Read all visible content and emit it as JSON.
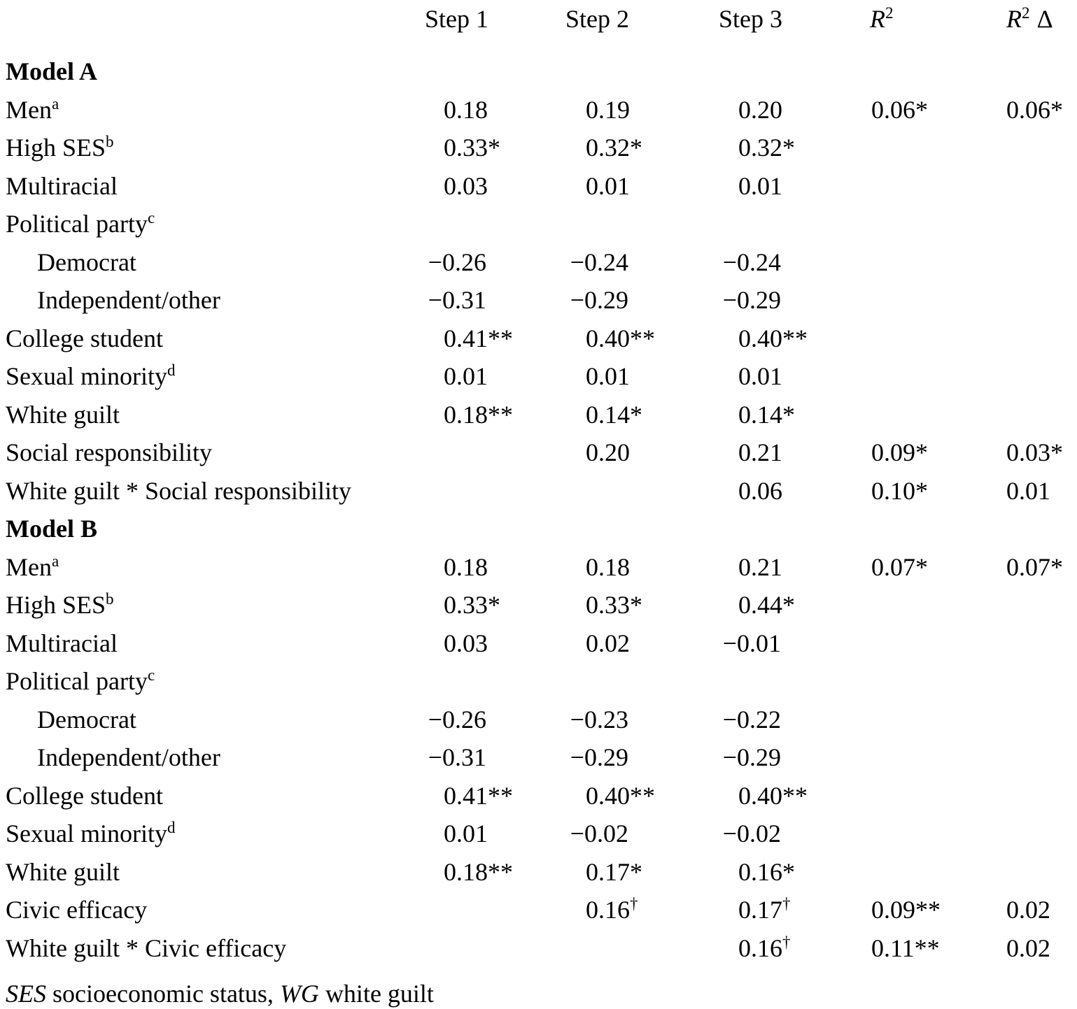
{
  "page": {
    "background": "#ffffff",
    "text_color": "#000000",
    "rule_color": "#000000"
  },
  "table": {
    "header": {
      "columns": [
        {
          "name": "step-1",
          "segments": [
            {
              "t": "Step 1"
            }
          ]
        },
        {
          "name": "step-2",
          "segments": [
            {
              "t": "Step 2"
            }
          ]
        },
        {
          "name": "step-3",
          "segments": [
            {
              "t": "Step 3"
            }
          ]
        },
        {
          "name": "r2",
          "segments": [
            {
              "t": "R",
              "italic": true
            },
            {
              "t": "2",
              "sup": true
            }
          ]
        },
        {
          "name": "r2-delta",
          "segments": [
            {
              "t": "R",
              "italic": true
            },
            {
              "t": "2",
              "sup": true
            },
            {
              "t": " ",
              "space": true
            },
            {
              "t": "Δ"
            }
          ]
        }
      ]
    },
    "rows": [
      {
        "type": "section",
        "label": [
          {
            "t": "Model A"
          }
        ],
        "cells": [
          "",
          "",
          "",
          "",
          ""
        ]
      },
      {
        "type": "data",
        "label": [
          {
            "t": "Men"
          },
          {
            "t": "a",
            "sup": true
          }
        ],
        "cells": [
          "0.18",
          "0.19",
          "0.20",
          "0.06*",
          "0.06*"
        ]
      },
      {
        "type": "data",
        "label": [
          {
            "t": "High SES"
          },
          {
            "t": "b",
            "sup": true
          }
        ],
        "cells": [
          "0.33*",
          "0.32*",
          "0.32*",
          "",
          ""
        ]
      },
      {
        "type": "data",
        "label": [
          {
            "t": "Multiracial"
          }
        ],
        "cells": [
          "0.03",
          "0.01",
          "0.01",
          "",
          ""
        ]
      },
      {
        "type": "data",
        "label": [
          {
            "t": "Political party"
          },
          {
            "t": "c",
            "sup": true
          }
        ],
        "cells": [
          "",
          "",
          "",
          "",
          ""
        ]
      },
      {
        "type": "data",
        "indent": true,
        "label": [
          {
            "t": "Democrat"
          }
        ],
        "cells": [
          "−0.26",
          "−0.24",
          "−0.24",
          "",
          ""
        ]
      },
      {
        "type": "data",
        "indent": true,
        "label": [
          {
            "t": "Independent/other"
          }
        ],
        "cells": [
          "−0.31",
          "−0.29",
          "−0.29",
          "",
          ""
        ]
      },
      {
        "type": "data",
        "label": [
          {
            "t": "College student"
          }
        ],
        "cells": [
          "0.41**",
          "0.40**",
          "0.40**",
          "",
          ""
        ]
      },
      {
        "type": "data",
        "label": [
          {
            "t": "Sexual minority"
          },
          {
            "t": "d",
            "sup": true
          }
        ],
        "cells": [
          "0.01",
          "0.01",
          "0.01",
          "",
          ""
        ]
      },
      {
        "type": "data",
        "label": [
          {
            "t": "White guilt"
          }
        ],
        "cells": [
          "0.18**",
          "0.14*",
          "0.14*",
          "",
          ""
        ]
      },
      {
        "type": "data",
        "label": [
          {
            "t": "Social responsibility"
          }
        ],
        "cells": [
          "",
          "0.20",
          "0.21",
          "0.09*",
          "0.03*"
        ]
      },
      {
        "type": "data",
        "label": [
          {
            "t": "White guilt * Social responsibility"
          }
        ],
        "cells": [
          "",
          "",
          "0.06",
          "0.10*",
          "0.01"
        ]
      },
      {
        "type": "section",
        "label": [
          {
            "t": "Model B"
          }
        ],
        "cells": [
          "",
          "",
          "",
          "",
          ""
        ]
      },
      {
        "type": "data",
        "label": [
          {
            "t": "Men"
          },
          {
            "t": "a",
            "sup": true
          }
        ],
        "cells": [
          "0.18",
          "0.18",
          "0.21",
          "0.07*",
          "0.07*"
        ]
      },
      {
        "type": "data",
        "label": [
          {
            "t": "High SES"
          },
          {
            "t": "b",
            "sup": true
          }
        ],
        "cells": [
          "0.33*",
          "0.33*",
          "0.44*",
          "",
          ""
        ]
      },
      {
        "type": "data",
        "label": [
          {
            "t": "Multiracial"
          }
        ],
        "cells": [
          "0.03",
          "0.02",
          "−0.01",
          "",
          ""
        ]
      },
      {
        "type": "data",
        "label": [
          {
            "t": "Political party"
          },
          {
            "t": "c",
            "sup": true
          }
        ],
        "cells": [
          "",
          "",
          "",
          "",
          ""
        ]
      },
      {
        "type": "data",
        "indent": true,
        "label": [
          {
            "t": "Democrat"
          }
        ],
        "cells": [
          "−0.26",
          "−0.23",
          "−0.22",
          "",
          ""
        ]
      },
      {
        "type": "data",
        "indent": true,
        "label": [
          {
            "t": "Independent/other"
          }
        ],
        "cells": [
          "−0.31",
          "−0.29",
          "−0.29",
          "",
          ""
        ]
      },
      {
        "type": "data",
        "label": [
          {
            "t": "College student"
          }
        ],
        "cells": [
          "0.41**",
          "0.40**",
          "0.40**",
          "",
          ""
        ]
      },
      {
        "type": "data",
        "label": [
          {
            "t": "Sexual minority"
          },
          {
            "t": "d",
            "sup": true
          }
        ],
        "cells": [
          "0.01",
          "−0.02",
          "−0.02",
          "",
          ""
        ]
      },
      {
        "type": "data",
        "label": [
          {
            "t": "White guilt"
          }
        ],
        "cells": [
          "0.18**",
          "0.17*",
          "0.16*",
          "",
          ""
        ]
      },
      {
        "type": "data",
        "label": [
          {
            "t": "Civic efficacy"
          }
        ],
        "cells": [
          "",
          "0.16†",
          "0.17†",
          "0.09**",
          "0.02"
        ]
      },
      {
        "type": "data",
        "label": [
          {
            "t": "White guilt * Civic efficacy"
          }
        ],
        "cells": [
          "",
          "",
          "0.16†",
          "0.11**",
          "0.02"
        ]
      }
    ],
    "footnote": [
      {
        "t": "SES",
        "italic": true
      },
      {
        "t": " socioeconomic status, "
      },
      {
        "t": "WG",
        "italic": true
      },
      {
        "t": " white guilt"
      }
    ]
  }
}
